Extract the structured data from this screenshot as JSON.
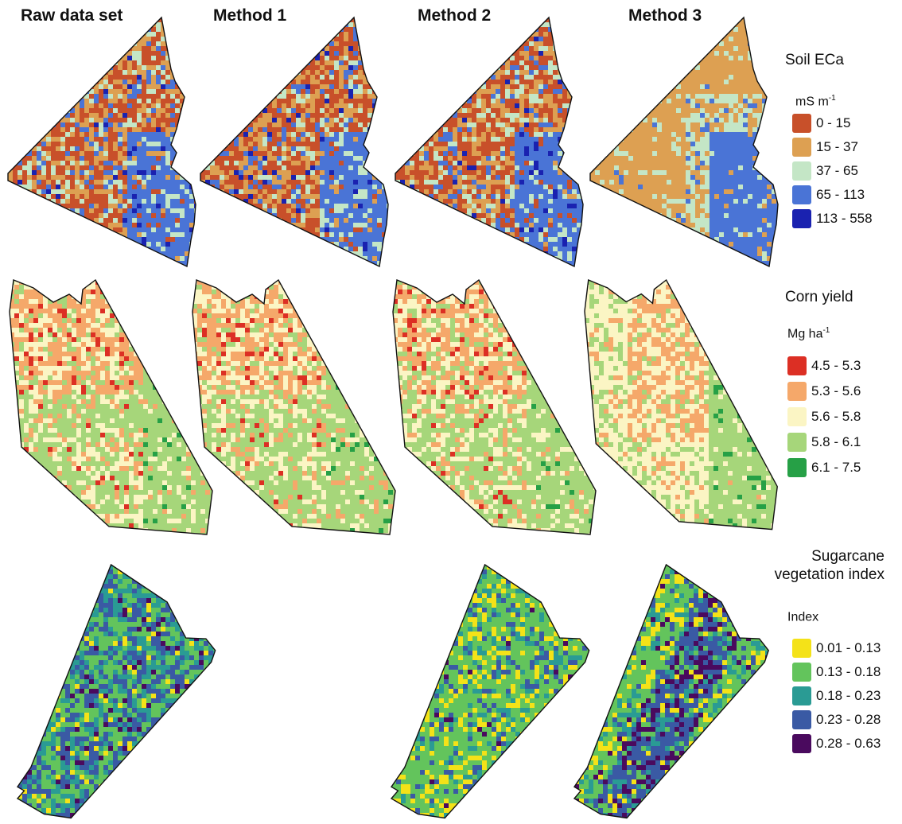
{
  "columns": [
    "Raw data set",
    "Method 1",
    "Method 2",
    "Method 3"
  ],
  "rows": [
    {
      "id": "ec",
      "legend_title": "Soil ECa",
      "unit_base": "mS m",
      "unit_exp": "-1",
      "classes": [
        {
          "label": "0 - 15",
          "color": "#c8502a"
        },
        {
          "label": "15 - 37",
          "color": "#dda052"
        },
        {
          "label": "37 - 65",
          "color": "#c4e6c6"
        },
        {
          "label": "65 - 113",
          "color": "#4a74d6"
        },
        {
          "label": "113 - 558",
          "color": "#1a22b0"
        }
      ],
      "maps": [
        {
          "column": "Raw data set",
          "present": true
        },
        {
          "column": "Method 1",
          "present": true
        },
        {
          "column": "Method 2",
          "present": true
        },
        {
          "column": "Method 3",
          "present": true
        }
      ]
    },
    {
      "id": "corn",
      "legend_title": "Corn yield",
      "unit_base": "Mg ha",
      "unit_exp": "-1",
      "classes": [
        {
          "label": "4.5 - 5.3",
          "color": "#dc2f24"
        },
        {
          "label": "5.3 - 5.6",
          "color": "#f5a86a"
        },
        {
          "label": "5.6 - 5.8",
          "color": "#fbf5c4"
        },
        {
          "label": "5.8 - 6.1",
          "color": "#a6d67a"
        },
        {
          "label": "6.1 - 7.5",
          "color": "#26a046"
        }
      ],
      "maps": [
        {
          "column": "Raw data set",
          "present": true
        },
        {
          "column": "Method 1",
          "present": true
        },
        {
          "column": "Method 2",
          "present": true
        },
        {
          "column": "Method 3",
          "present": true
        }
      ]
    },
    {
      "id": "sugar",
      "legend_title": "Sugarcane\nvegetation index",
      "unit_base": "Index",
      "unit_exp": "",
      "classes": [
        {
          "label": "0.01 - 0.13",
          "color": "#f4e218"
        },
        {
          "label": "0.13 - 0.18",
          "color": "#63c45c"
        },
        {
          "label": "0.18 - 0.23",
          "color": "#2a9b94"
        },
        {
          "label": "0.23 - 0.28",
          "color": "#3a5aa4"
        },
        {
          "label": "0.28 - 0.63",
          "color": "#4a0a5e"
        }
      ],
      "maps": [
        {
          "column": "Raw data set",
          "present": true
        },
        {
          "column": "Method 1",
          "present": false
        },
        {
          "column": "Method 2",
          "present": true
        },
        {
          "column": "Method 3",
          "present": true
        }
      ]
    }
  ]
}
